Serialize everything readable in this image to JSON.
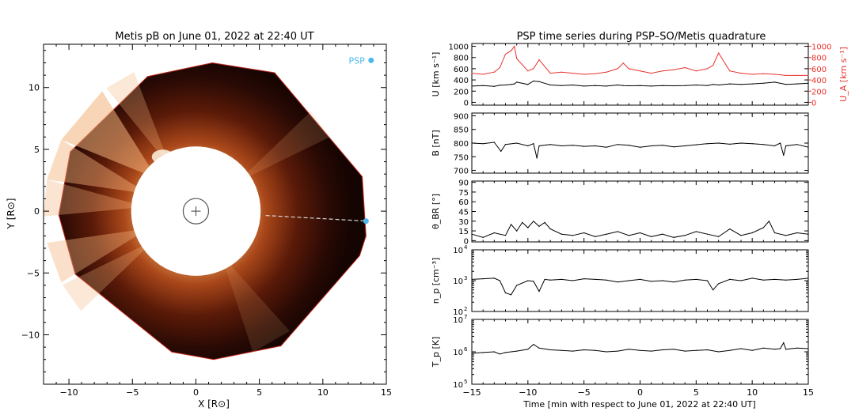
{
  "left_panel": {
    "title": "Metis pB on June 01, 2022 at 22:40 UT",
    "xlabel": "X [R⊙]",
    "ylabel": "Y [R⊙]",
    "psp_label": "PSP",
    "psp_color": "#4db8ee"
  },
  "right_panel": {
    "title": "PSP time series during PSP–SO/Metis quadrature",
    "xlabel": "Time [min with respect to June 01, 2022 at 22:40 UT]",
    "accent_color": "#e8322c"
  },
  "chart_data": [
    {
      "type": "heatmap",
      "title": "Metis pB on June 01, 2022 at 22:40 UT",
      "xlabel": "X [R⊙]",
      "ylabel": "Y [R⊙]",
      "xlim": [
        -12,
        15
      ],
      "ylim": [
        -14,
        13.5
      ],
      "xticks": [
        -10,
        -5,
        0,
        5,
        10,
        15
      ],
      "yticks": [
        -10,
        -5,
        0,
        5,
        10
      ],
      "occulter_radius": 5.1,
      "disk_radius": 1.0,
      "psp_marker_top": {
        "x": 13.8,
        "y": 12.2,
        "label": "PSP"
      },
      "psp_position": {
        "x": 13.4,
        "y": -0.8
      },
      "field_of_view_vertices": [
        [
          -10.8,
          -0.3
        ],
        [
          -9.9,
          4.8
        ],
        [
          -3.8,
          10.9
        ],
        [
          1.3,
          12.0
        ],
        [
          6.2,
          11.2
        ],
        [
          13.1,
          2.8
        ],
        [
          13.4,
          -2.0
        ],
        [
          12.9,
          -3.6
        ],
        [
          6.7,
          -10.9
        ],
        [
          1.4,
          -12.0
        ],
        [
          -1.9,
          -11.4
        ],
        [
          -9.5,
          -5.1
        ]
      ]
    },
    {
      "type": "line",
      "ylabel": "U [km s⁻¹]",
      "ylabel_right": "U_A [km s⁻¹]",
      "xlim": [
        -15,
        15
      ],
      "ylim": [
        -50,
        1050
      ],
      "yticks": [
        0,
        200,
        400,
        600,
        800,
        1000
      ],
      "x": [
        -15,
        -14,
        -13,
        -12.5,
        -12,
        -11.5,
        -11.2,
        -11,
        -10,
        -9.5,
        -9,
        -8,
        -7,
        -6,
        -5,
        -4,
        -3,
        -2,
        -1.5,
        -1,
        0,
        1,
        2,
        3,
        4,
        5,
        6,
        6.5,
        7,
        8,
        9,
        10,
        11,
        12,
        13,
        14,
        15
      ],
      "series": [
        {
          "name": "U",
          "color": "#000000",
          "values": [
            290,
            300,
            285,
            305,
            310,
            320,
            330,
            360,
            320,
            380,
            370,
            310,
            300,
            310,
            290,
            300,
            290,
            310,
            300,
            295,
            300,
            290,
            300,
            295,
            300,
            310,
            300,
            320,
            310,
            330,
            320,
            330,
            340,
            360,
            320,
            330,
            340
          ]
        },
        {
          "name": "U_A",
          "color": "#e8322c",
          "values": [
            520,
            500,
            540,
            620,
            860,
            920,
            1000,
            780,
            560,
            600,
            760,
            520,
            540,
            520,
            500,
            510,
            540,
            600,
            700,
            600,
            560,
            520,
            560,
            580,
            620,
            560,
            600,
            660,
            880,
            560,
            520,
            500,
            510,
            500,
            480,
            480,
            480
          ]
        }
      ]
    },
    {
      "type": "line",
      "ylabel": "B [nT]",
      "xlim": [
        -15,
        15
      ],
      "ylim": [
        690,
        910
      ],
      "yticks": [
        700,
        750,
        800,
        850,
        900
      ],
      "x": [
        -15,
        -14,
        -13,
        -12.4,
        -12,
        -11,
        -10,
        -9.5,
        -9.2,
        -9,
        -8,
        -7,
        -6,
        -5,
        -4,
        -3,
        -2,
        -1,
        0,
        1,
        2,
        3,
        4,
        5,
        6,
        7,
        8,
        9,
        10,
        11,
        12,
        12.5,
        12.8,
        13,
        14,
        15
      ],
      "series": [
        {
          "name": "B",
          "color": "#000000",
          "values": [
            800,
            798,
            803,
            770,
            795,
            800,
            790,
            798,
            745,
            790,
            795,
            790,
            792,
            788,
            790,
            785,
            795,
            792,
            785,
            790,
            792,
            786,
            790,
            794,
            798,
            800,
            796,
            800,
            798,
            795,
            790,
            800,
            755,
            790,
            795,
            785
          ]
        }
      ]
    },
    {
      "type": "line",
      "ylabel": "θ_BR [°]",
      "xlim": [
        -15,
        15
      ],
      "ylim": [
        -2,
        92
      ],
      "yticks": [
        0,
        15,
        30,
        45,
        60,
        75,
        90
      ],
      "x": [
        -15,
        -14,
        -13,
        -12,
        -11.5,
        -11,
        -10.5,
        -10,
        -9.5,
        -9,
        -8.5,
        -8,
        -7,
        -6,
        -5,
        -4,
        -3,
        -2,
        -1,
        0,
        1,
        2,
        3,
        4,
        5,
        6,
        7,
        8,
        9,
        10,
        11,
        11.5,
        12,
        13,
        14,
        15
      ],
      "series": [
        {
          "name": "theta_BR",
          "color": "#000000",
          "values": [
            10,
            5,
            12,
            8,
            25,
            15,
            28,
            20,
            30,
            22,
            28,
            18,
            10,
            8,
            12,
            6,
            10,
            14,
            8,
            12,
            6,
            10,
            5,
            8,
            14,
            10,
            6,
            18,
            8,
            12,
            20,
            30,
            12,
            8,
            12,
            10
          ]
        }
      ]
    },
    {
      "type": "line",
      "ylabel": "n_p [cm⁻³]",
      "log_scale": true,
      "xlim": [
        -15,
        15
      ],
      "ylim": [
        100,
        10000
      ],
      "yticks": [
        100,
        1000,
        10000
      ],
      "x": [
        -15,
        -14,
        -13,
        -12.5,
        -12,
        -11.5,
        -11,
        -10,
        -9.5,
        -9,
        -8.5,
        -8,
        -7,
        -6,
        -5,
        -4,
        -3,
        -2,
        -1,
        0,
        1,
        2,
        3,
        4,
        5,
        6,
        6.5,
        7,
        8,
        9,
        10,
        11,
        12,
        13,
        14,
        15
      ],
      "series": [
        {
          "name": "n_p",
          "color": "#000000",
          "values": [
            1100,
            1150,
            1200,
            1000,
            400,
            350,
            700,
            1000,
            950,
            450,
            1100,
            1050,
            1100,
            1000,
            1150,
            1100,
            1050,
            900,
            1000,
            1100,
            950,
            1000,
            900,
            1050,
            1100,
            1000,
            500,
            800,
            1100,
            1000,
            1200,
            1050,
            1100,
            1050,
            1100,
            1200
          ]
        }
      ]
    },
    {
      "type": "line",
      "ylabel": "T_p [K]",
      "log_scale": true,
      "xlim": [
        -15,
        15
      ],
      "ylim": [
        100000,
        10000000
      ],
      "yticks": [
        100000,
        1000000,
        10000000
      ],
      "x": [
        -15,
        -14,
        -13,
        -12.5,
        -12,
        -11,
        -10,
        -9.5,
        -9,
        -8,
        -7,
        -6,
        -5,
        -4,
        -3,
        -2,
        -1,
        0,
        1,
        2,
        3,
        4,
        5,
        6,
        7,
        8,
        9,
        10,
        11,
        12,
        12.5,
        12.8,
        13,
        14,
        15
      ],
      "series": [
        {
          "name": "T_p",
          "color": "#000000",
          "values": [
            900000,
            950000,
            1000000,
            850000,
            950000,
            1050000,
            1200000,
            1700000,
            1300000,
            1150000,
            1100000,
            1050000,
            1150000,
            1100000,
            1000000,
            1050000,
            1200000,
            1100000,
            1050000,
            1150000,
            1200000,
            1050000,
            1100000,
            1150000,
            1000000,
            1100000,
            1250000,
            1100000,
            1300000,
            1200000,
            1250000,
            1900000,
            1200000,
            1300000,
            1250000
          ]
        }
      ]
    }
  ],
  "bottom_axis": {
    "xticks": [
      -15,
      -10,
      -5,
      0,
      5,
      10,
      15
    ]
  }
}
